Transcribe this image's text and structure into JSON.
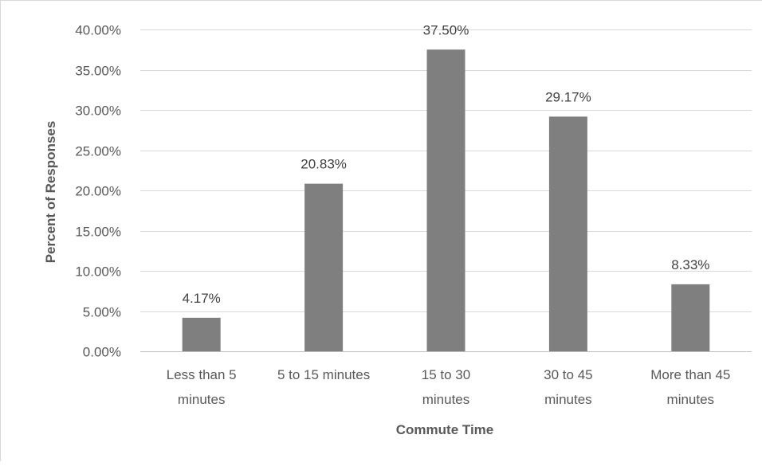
{
  "chart_data": {
    "type": "bar",
    "title": "",
    "xlabel": "Commute Time",
    "ylabel": "Percent of Responses",
    "categories": [
      [
        "Less than 5",
        "minutes"
      ],
      [
        "5 to 15 minutes"
      ],
      [
        "15 to 30",
        "minutes"
      ],
      [
        "30 to 45",
        "minutes"
      ],
      [
        "More than 45",
        "minutes"
      ]
    ],
    "values": [
      4.17,
      20.83,
      37.5,
      29.17,
      8.33
    ],
    "data_labels": [
      "4.17%",
      "20.83%",
      "37.50%",
      "29.17%",
      "8.33%"
    ],
    "ylim": [
      0,
      40
    ],
    "yticks": [
      0,
      5,
      10,
      15,
      20,
      25,
      30,
      35,
      40
    ],
    "ytick_labels": [
      "0.00%",
      "5.00%",
      "10.00%",
      "15.00%",
      "20.00%",
      "25.00%",
      "30.00%",
      "35.00%",
      "40.00%"
    ],
    "grid": true,
    "legend": "none",
    "colors": {
      "bar": "#7f7f7f",
      "grid": "#d9d9d9",
      "axis": "#bfbfbf",
      "text": "#595959"
    }
  }
}
